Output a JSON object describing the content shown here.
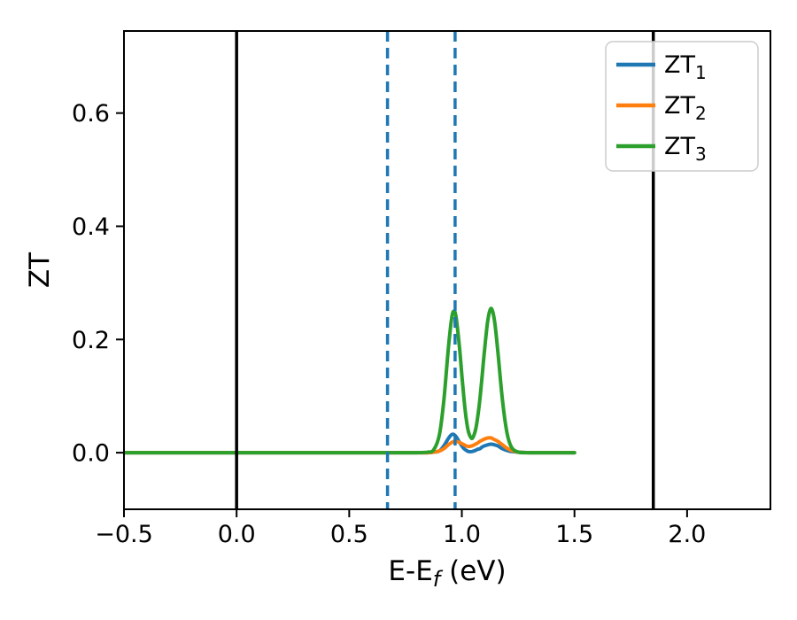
{
  "figure": {
    "background": "#ffffff"
  },
  "chart_data": {
    "type": "line",
    "title": "",
    "xlabel_parts": {
      "pre": "E-E",
      "sub": "f",
      "post": " (eV)"
    },
    "ylabel": "ZT",
    "xlim": [
      -0.5,
      2.37
    ],
    "ylim": [
      -0.1,
      0.745
    ],
    "grid": false,
    "legend_position": "upper right",
    "x_ticks": {
      "values": [
        -0.5,
        0.0,
        0.5,
        1.0,
        1.5,
        2.0
      ],
      "labels": [
        "−0.5",
        "0.0",
        "0.5",
        "1.0",
        "1.5",
        "2.0"
      ]
    },
    "y_ticks": {
      "values": [
        0.0,
        0.2,
        0.4,
        0.6
      ],
      "labels": [
        "0.0",
        "0.2",
        "0.4",
        "0.6"
      ]
    },
    "x": [
      -0.5,
      -0.3,
      -0.1,
      0.0,
      0.2,
      0.4,
      0.6,
      0.7,
      0.75,
      0.8,
      0.85,
      0.875,
      0.9,
      0.92,
      0.94,
      0.955,
      0.965,
      0.975,
      0.99,
      1.0,
      1.01,
      1.02,
      1.03,
      1.045,
      1.06,
      1.07,
      1.08,
      1.09,
      1.1,
      1.115,
      1.13,
      1.145,
      1.16,
      1.18,
      1.2,
      1.22,
      1.25,
      1.3,
      1.35,
      1.4,
      1.45,
      1.5
    ],
    "series": [
      {
        "name": "ZT1",
        "label_main": "ZT",
        "label_sub": "1",
        "color": "#1f77b4",
        "values": [
          0,
          0,
          0,
          0,
          0,
          0,
          0,
          0,
          0,
          0,
          0,
          0.001,
          0.003,
          0.012,
          0.025,
          0.032,
          0.032,
          0.028,
          0.018,
          0.012,
          0.007,
          0.004,
          0.002,
          0.002,
          0.004,
          0.006,
          0.007,
          0.01,
          0.012,
          0.014,
          0.015,
          0.014,
          0.012,
          0.007,
          0.004,
          0.002,
          0.001,
          0,
          0,
          0,
          0,
          0
        ]
      },
      {
        "name": "ZT2",
        "label_main": "ZT",
        "label_sub": "2",
        "color": "#ff7f0e",
        "values": [
          0,
          0,
          0,
          0,
          0,
          0,
          0,
          0,
          0,
          0,
          0,
          0.001,
          0.003,
          0.007,
          0.014,
          0.018,
          0.02,
          0.02,
          0.018,
          0.016,
          0.014,
          0.012,
          0.011,
          0.012,
          0.015,
          0.017,
          0.02,
          0.022,
          0.024,
          0.026,
          0.026,
          0.023,
          0.02,
          0.014,
          0.008,
          0.004,
          0.001,
          0,
          0,
          0,
          0,
          0
        ]
      },
      {
        "name": "ZT3",
        "label_main": "ZT",
        "label_sub": "3",
        "color": "#2ca02c",
        "values": [
          0,
          0,
          0,
          0,
          0,
          0,
          0,
          0,
          0,
          0,
          0.001,
          0.005,
          0.031,
          0.092,
          0.184,
          0.238,
          0.25,
          0.238,
          0.184,
          0.137,
          0.093,
          0.058,
          0.036,
          0.025,
          0.039,
          0.062,
          0.094,
          0.135,
          0.178,
          0.233,
          0.255,
          0.233,
          0.178,
          0.094,
          0.036,
          0.01,
          0.001,
          0,
          0,
          0,
          0,
          0
        ]
      }
    ],
    "vlines": [
      {
        "x": 0.0,
        "color": "#000000",
        "style": "solid"
      },
      {
        "x": 1.85,
        "color": "#000000",
        "style": "solid"
      },
      {
        "x": 0.67,
        "color": "#1f77b4",
        "style": "dashed"
      },
      {
        "x": 0.97,
        "color": "#1f77b4",
        "style": "dashed"
      }
    ],
    "legend_frame": {
      "border": "#cccccc",
      "background": "#ffffff"
    }
  }
}
